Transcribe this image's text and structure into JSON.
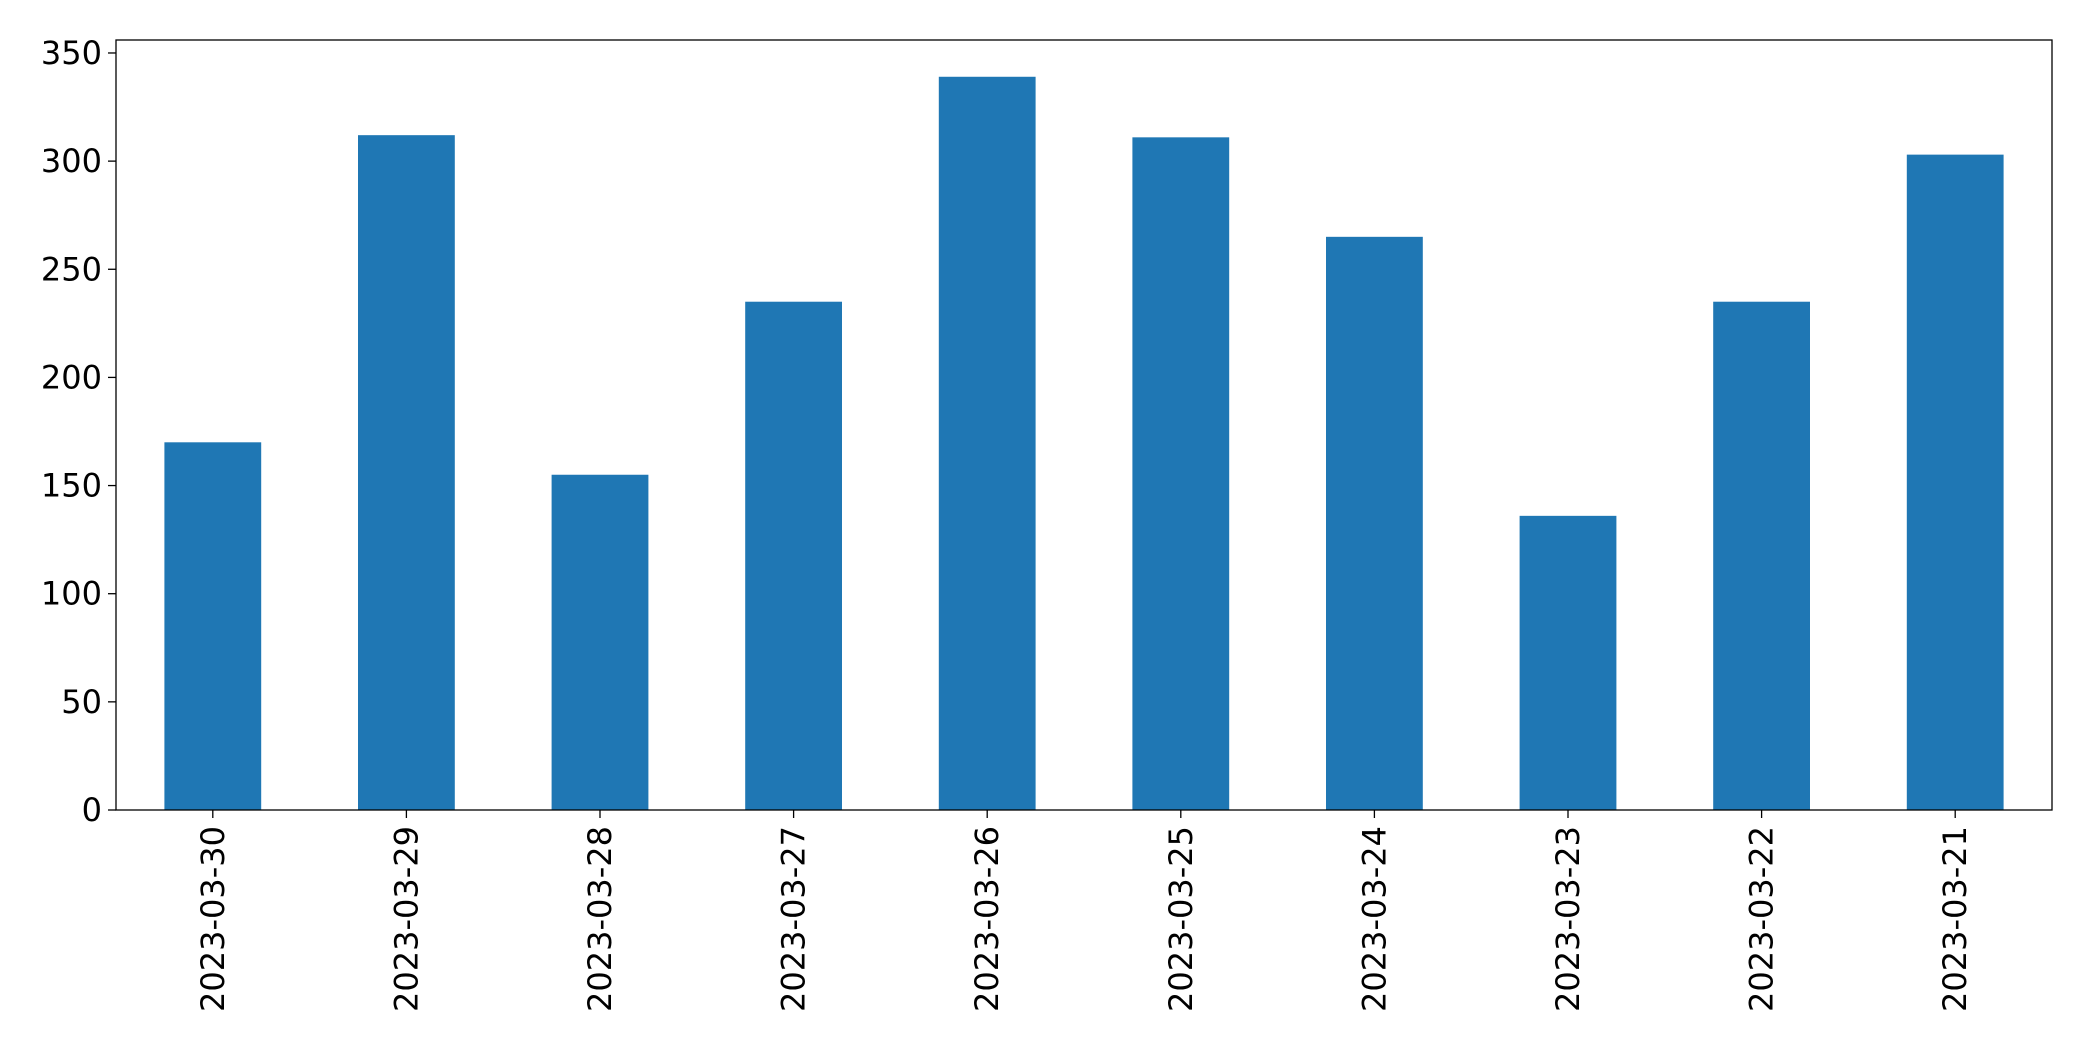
{
  "chart_data": {
    "type": "bar",
    "categories": [
      "2023-03-30",
      "2023-03-29",
      "2023-03-28",
      "2023-03-27",
      "2023-03-26",
      "2023-03-25",
      "2023-03-24",
      "2023-03-23",
      "2023-03-22",
      "2023-03-21"
    ],
    "values": [
      170,
      312,
      155,
      235,
      339,
      311,
      265,
      136,
      235,
      303
    ],
    "color": "#1f77b4",
    "ylim": [
      0,
      356
    ],
    "yticks": [
      0,
      50,
      100,
      150,
      200,
      250,
      300,
      350
    ],
    "grid": false
  }
}
